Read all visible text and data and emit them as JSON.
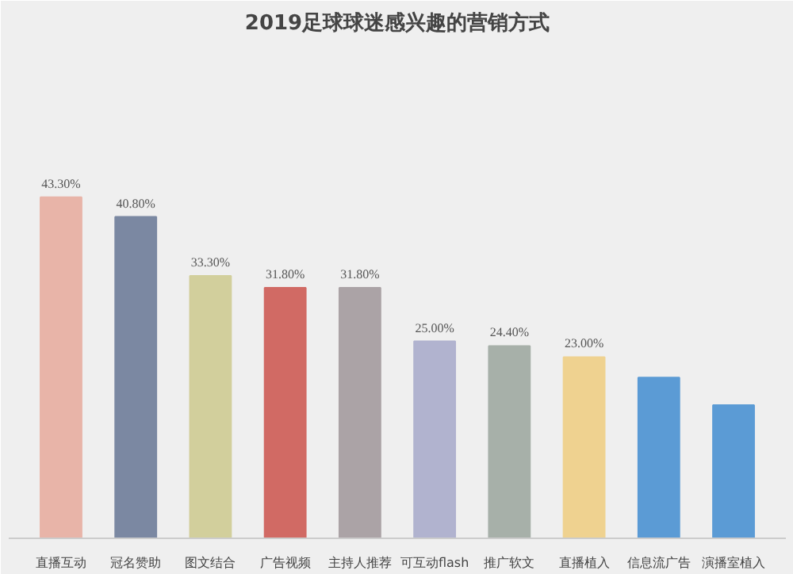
{
  "chart_data": {
    "type": "bar",
    "title": "2019足球球迷感兴趣的营销方式",
    "categories": [
      "直播互动",
      "冠名赞助",
      "图文结合",
      "广告视频",
      "主持人推荐",
      "可互动flash",
      "推广软文",
      "直播植入",
      "信息流广告",
      "演播室植入"
    ],
    "values": [
      43.3,
      40.8,
      33.3,
      31.8,
      31.8,
      25.0,
      24.4,
      23.0,
      20.4,
      16.9
    ],
    "value_labels": [
      "43.30%",
      "40.80%",
      "33.30%",
      "31.80%",
      "31.80%",
      "25.00%",
      "24.40%",
      "23.00%",
      null,
      null
    ],
    "colors": [
      "#e8b4a8",
      "#7b88a2",
      "#d2cf9c",
      "#d16a64",
      "#aba3a6",
      "#b1b3cf",
      "#a7b0a9",
      "#efd290",
      "#5b9bd5",
      "#5b9bd5"
    ],
    "grid": false
  }
}
